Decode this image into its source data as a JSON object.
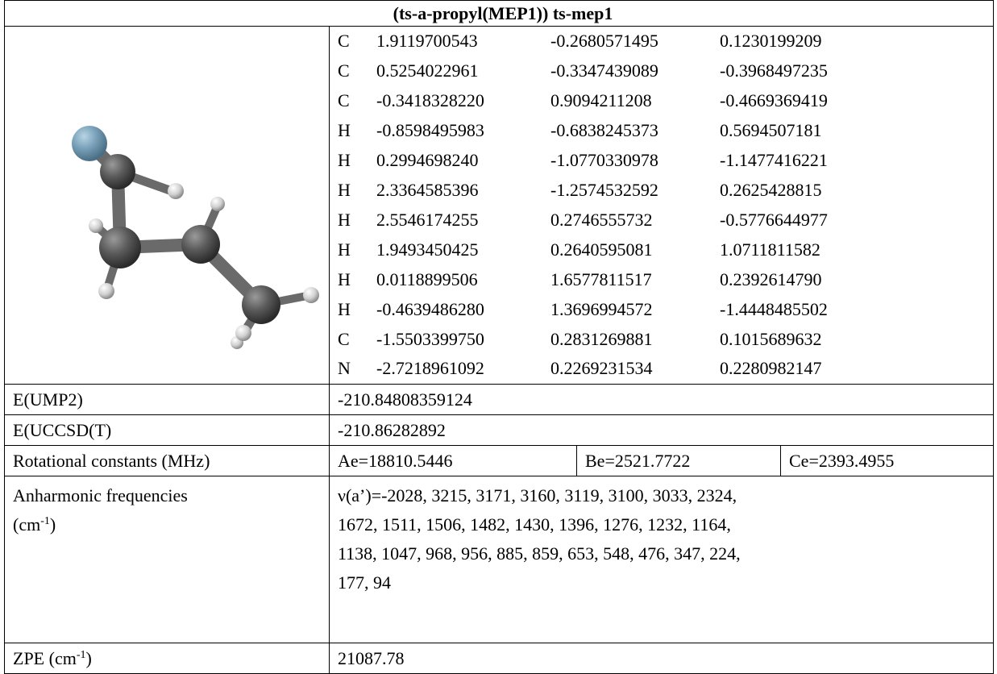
{
  "title": "(ts-a-propyl(MEP1)) ts-mep1",
  "atoms": [
    [
      "C",
      "1.9119700543",
      "-0.2680571495",
      "0.1230199209"
    ],
    [
      "C",
      "0.5254022961",
      "-0.3347439089",
      "-0.3968497235"
    ],
    [
      "C",
      "-0.3418328220",
      "0.9094211208",
      "-0.4669369419"
    ],
    [
      "H",
      "-0.8598495983",
      "-0.6838245373",
      "0.5694507181"
    ],
    [
      "H",
      "0.2994698240",
      "-1.0770330978",
      "-1.1477416221"
    ],
    [
      "H",
      "2.3364585396",
      "-1.2574532592",
      "0.2625428815"
    ],
    [
      "H",
      "2.5546174255",
      "0.2746555732",
      "-0.5776644977"
    ],
    [
      "H",
      "1.9493450425",
      "0.2640595081",
      "1.0711811582"
    ],
    [
      "H",
      "0.0118899506",
      "1.6577811517",
      "0.2392614790"
    ],
    [
      "H",
      "-0.4639486280",
      "1.3696994572",
      "-1.4448485502"
    ],
    [
      "C",
      "-1.5503399750",
      "0.2831269881",
      "0.1015689632"
    ],
    [
      "N",
      "-2.7218961092",
      "0.2269231534",
      "0.2280982147"
    ]
  ],
  "energy_ump2": {
    "label": "E(UMP2)",
    "value": "-210.84808359124"
  },
  "energy_uccsdt": {
    "label": "E(UCCSD(T)",
    "value": "-210.86282892"
  },
  "rotational": {
    "label": "Rotational constants (MHz)",
    "values": [
      "Ae=18810.5446",
      "Be=2521.7722",
      "Ce=2393.4955"
    ]
  },
  "anharmonic": {
    "label": "Anharmonic frequencies",
    "unit_open": "(cm",
    "unit_exp": "-1",
    "unit_close": ")",
    "lines": [
      "ν(a’)=-2028, 3215, 3171, 3160, 3119, 3100, 3033, 2324,",
      "1672, 1511, 1506, 1482, 1430, 1396, 1276, 1232, 1164,",
      "1138, 1047, 968, 956, 885, 859, 653, 548, 476, 347, 224,",
      "177, 94"
    ]
  },
  "zpe": {
    "label": "ZPE (cm",
    "unit_exp": "-1",
    "unit_close": ")",
    "value": "21087.78"
  }
}
